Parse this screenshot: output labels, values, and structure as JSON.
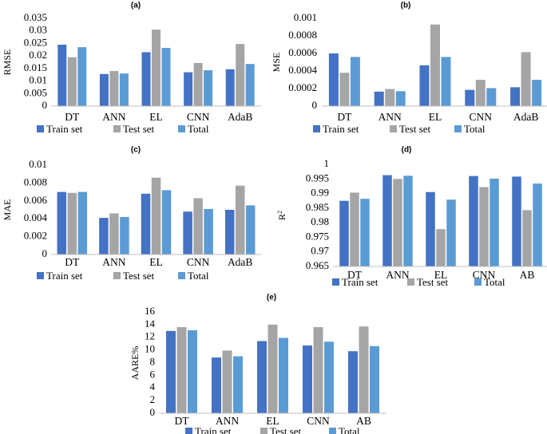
{
  "colors": {
    "train": "#4472C4",
    "test": "#A5A5A5",
    "total": "#5B9BD5",
    "axis": "#BFBFBF"
  },
  "legend": [
    "Train set",
    "Test set",
    "Total"
  ],
  "chart_data": [
    {
      "type": "bar",
      "title": "(a)",
      "ylabel": "RMSE",
      "xlabel": "",
      "categories": [
        "DT",
        "ANN",
        "EL",
        "CNN",
        "AdaB"
      ],
      "ylim": [
        0,
        0.035
      ],
      "ticks": [
        "0",
        "0.005",
        "0.01",
        "0.015",
        "0.02",
        "0.025",
        "0.03",
        "0.035"
      ],
      "series": [
        {
          "name": "Train set",
          "values": [
            0.0245,
            0.0128,
            0.0215,
            0.0135,
            0.0147
          ]
        },
        {
          "name": "Test set",
          "values": [
            0.0195,
            0.014,
            0.0305,
            0.0172,
            0.0248
          ]
        },
        {
          "name": "Total",
          "values": [
            0.0235,
            0.013,
            0.0232,
            0.0143,
            0.0168
          ]
        }
      ]
    },
    {
      "type": "bar",
      "title": "(b)",
      "ylabel": "MSE",
      "xlabel": "",
      "categories": [
        "DT",
        "ANN",
        "EL",
        "CNN",
        "AdaB"
      ],
      "ylim": [
        0,
        0.001
      ],
      "ticks": [
        "0",
        "0.0002",
        "0.0004",
        "0.0006",
        "0.0008",
        "0.001"
      ],
      "series": [
        {
          "name": "Train set",
          "values": [
            0.0006,
            0.000165,
            0.000465,
            0.000185,
            0.000215
          ]
        },
        {
          "name": "Test set",
          "values": [
            0.00038,
            0.000195,
            0.00093,
            0.0003,
            0.000615
          ]
        },
        {
          "name": "Total",
          "values": [
            0.00056,
            0.00017,
            0.00056,
            0.000205,
            0.0003
          ]
        }
      ]
    },
    {
      "type": "bar",
      "title": "(c)",
      "ylabel": "MAE",
      "xlabel": "",
      "categories": [
        "DT",
        "ANN",
        "EL",
        "CNN",
        "AdaB"
      ],
      "ylim": [
        0,
        0.01
      ],
      "ticks": [
        "0",
        "0.002",
        "0.004",
        "0.006",
        "0.008",
        "0.01"
      ],
      "series": [
        {
          "name": "Train set",
          "values": [
            0.007,
            0.0041,
            0.0068,
            0.0048,
            0.005
          ]
        },
        {
          "name": "Test set",
          "values": [
            0.0069,
            0.0046,
            0.0086,
            0.0063,
            0.0077
          ]
        },
        {
          "name": "Total",
          "values": [
            0.007,
            0.0042,
            0.0072,
            0.0051,
            0.0055
          ]
        }
      ]
    },
    {
      "type": "bar",
      "title": "(d)",
      "ylabel": "R",
      "ylabel_sup": "2",
      "xlabel": "",
      "categories": [
        "DT",
        "ANN",
        "EL",
        "CNN",
        "AB"
      ],
      "ylim": [
        0.965,
        1
      ],
      "ticks": [
        "0.965",
        "0.97",
        "0.975",
        "0.98",
        "0.985",
        "0.99",
        "0.995",
        "1"
      ],
      "series": [
        {
          "name": "Train set",
          "values": [
            0.9875,
            0.9963,
            0.9905,
            0.996,
            0.9958
          ]
        },
        {
          "name": "Test set",
          "values": [
            0.9903,
            0.995,
            0.9778,
            0.9922,
            0.9843
          ]
        },
        {
          "name": "Total",
          "values": [
            0.9882,
            0.9961,
            0.9879,
            0.9951,
            0.9934
          ]
        }
      ]
    },
    {
      "type": "bar",
      "title": "(e)",
      "ylabel": "AARE%",
      "xlabel": "",
      "categories": [
        "DT",
        "ANN",
        "EL",
        "CNN",
        "AB"
      ],
      "ylim": [
        0,
        16
      ],
      "ticks": [
        "0",
        "2",
        "4",
        "6",
        "8",
        "10",
        "12",
        "14",
        "16"
      ],
      "series": [
        {
          "name": "Train set",
          "values": [
            13.0,
            8.8,
            11.4,
            10.7,
            9.8
          ]
        },
        {
          "name": "Test set",
          "values": [
            13.6,
            9.9,
            14.0,
            13.6,
            13.7
          ]
        },
        {
          "name": "Total",
          "values": [
            13.1,
            9.0,
            11.9,
            11.3,
            10.6
          ]
        }
      ]
    }
  ]
}
